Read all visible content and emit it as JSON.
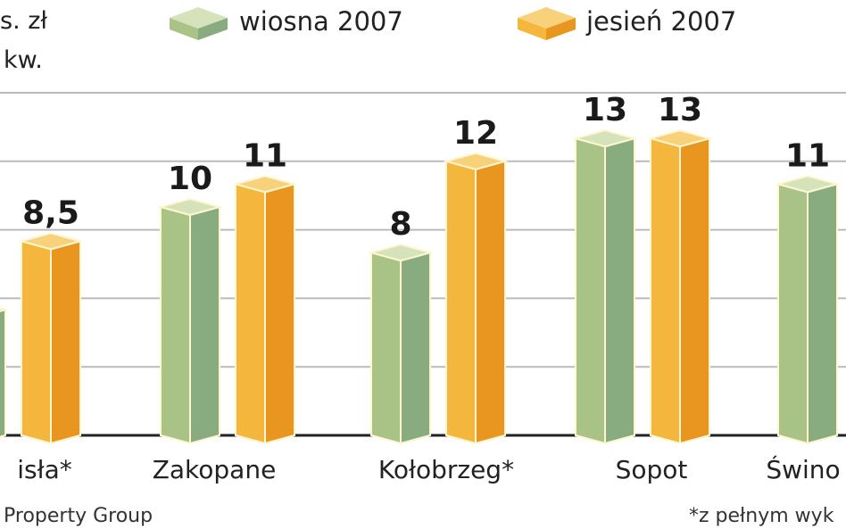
{
  "chart_data": {
    "type": "bar",
    "title": "",
    "ylabel_lines": [
      "s. zł",
      "kw."
    ],
    "categories": [
      "isła*",
      "Zakopane",
      "Kołobrzeg*",
      "Sopot",
      "Świno"
    ],
    "series": [
      {
        "name": "wiosna 2007",
        "values": [
          5.5,
          10,
          8,
          13,
          11
        ],
        "labels": [
          "",
          "10",
          "8",
          "13",
          "11"
        ],
        "color": "#a9c387"
      },
      {
        "name": "jesień 2007",
        "values": [
          8.5,
          11,
          12,
          13,
          null
        ],
        "labels": [
          "8,5",
          "11",
          "12",
          "13",
          ""
        ],
        "color": "#f4b63c"
      }
    ],
    "ylim": [
      0,
      15
    ],
    "gridlines": [
      3,
      6,
      9,
      12,
      15
    ],
    "grid": true,
    "legend": "top",
    "source": "Property Group",
    "footnote": "*z pełnym wyk"
  }
}
